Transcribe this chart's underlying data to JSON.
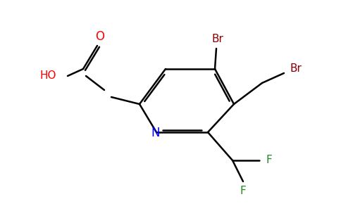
{
  "background_color": "#ffffff",
  "line_color": "#000000",
  "atom_colors": {
    "O": "#ff0000",
    "N": "#0000ff",
    "Br": "#8b0000",
    "F": "#228b22"
  },
  "line_width": 1.8,
  "figsize": [
    4.84,
    3.0
  ],
  "dpi": 100
}
